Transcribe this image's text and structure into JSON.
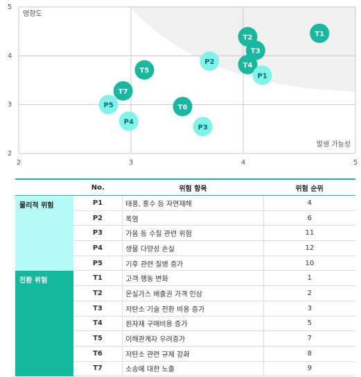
{
  "chart_data": {
    "type": "scatter",
    "y_label": "영향도",
    "x_label": "발생 가능성",
    "xlim": [
      2,
      5
    ],
    "ylim": [
      2,
      5
    ],
    "xticks": [
      2,
      3,
      4,
      5
    ],
    "yticks": [
      2,
      3,
      4,
      5
    ],
    "grid": true,
    "series": [
      {
        "color": "#17b89f",
        "text_color": "#ffffff",
        "labels": [
          "T1",
          "T2",
          "T3",
          "T4",
          "T5",
          "T6",
          "T7"
        ],
        "x": [
          4.68,
          4.04,
          4.11,
          4.04,
          3.12,
          3.46,
          2.93
        ],
        "y": [
          4.46,
          4.39,
          4.11,
          3.82,
          3.71,
          2.96,
          3.28
        ]
      },
      {
        "color": "#7ff3ec",
        "text_color": "#0e6e62",
        "labels": [
          "P1",
          "P2",
          "P3",
          "P4",
          "P5"
        ],
        "x": [
          4.17,
          3.7,
          3.64,
          2.98,
          2.8
        ],
        "y": [
          3.6,
          3.89,
          2.55,
          2.66,
          3.0
        ]
      }
    ]
  },
  "table": {
    "header": [
      "No.",
      "위험 항목",
      "위험 순위"
    ],
    "groups": [
      {
        "name": "물리적 위험",
        "color": "#b6fbf6",
        "text_color": "#222222",
        "rows": [
          [
            "P1",
            "태풍, 홍수 등 자연재해",
            "4"
          ],
          [
            "P2",
            "폭염",
            "6"
          ],
          [
            "P3",
            "가뭄 등 수질 관련 위험",
            "11"
          ],
          [
            "P4",
            "생물 다양성 손실",
            "12"
          ],
          [
            "P5",
            "기후 관련 질병 증가",
            "10"
          ]
        ]
      },
      {
        "name": "전환 위험",
        "color": "#14b89c",
        "text_color": "#ffffff",
        "rows": [
          [
            "T1",
            "고객 행동 변화",
            "1"
          ],
          [
            "T2",
            "온실가스 배출권 가격 인상",
            "2"
          ],
          [
            "T3",
            "저탄소 기술 전환 비용 증가",
            "3"
          ],
          [
            "T4",
            "원자재 구매비용 증가",
            "5"
          ],
          [
            "T5",
            "이해관계자 우려증가",
            "7"
          ],
          [
            "T6",
            "저탄소 관련 규제 강화",
            "8"
          ],
          [
            "T7",
            "소송에 대한 노출",
            "9"
          ]
        ]
      }
    ]
  }
}
